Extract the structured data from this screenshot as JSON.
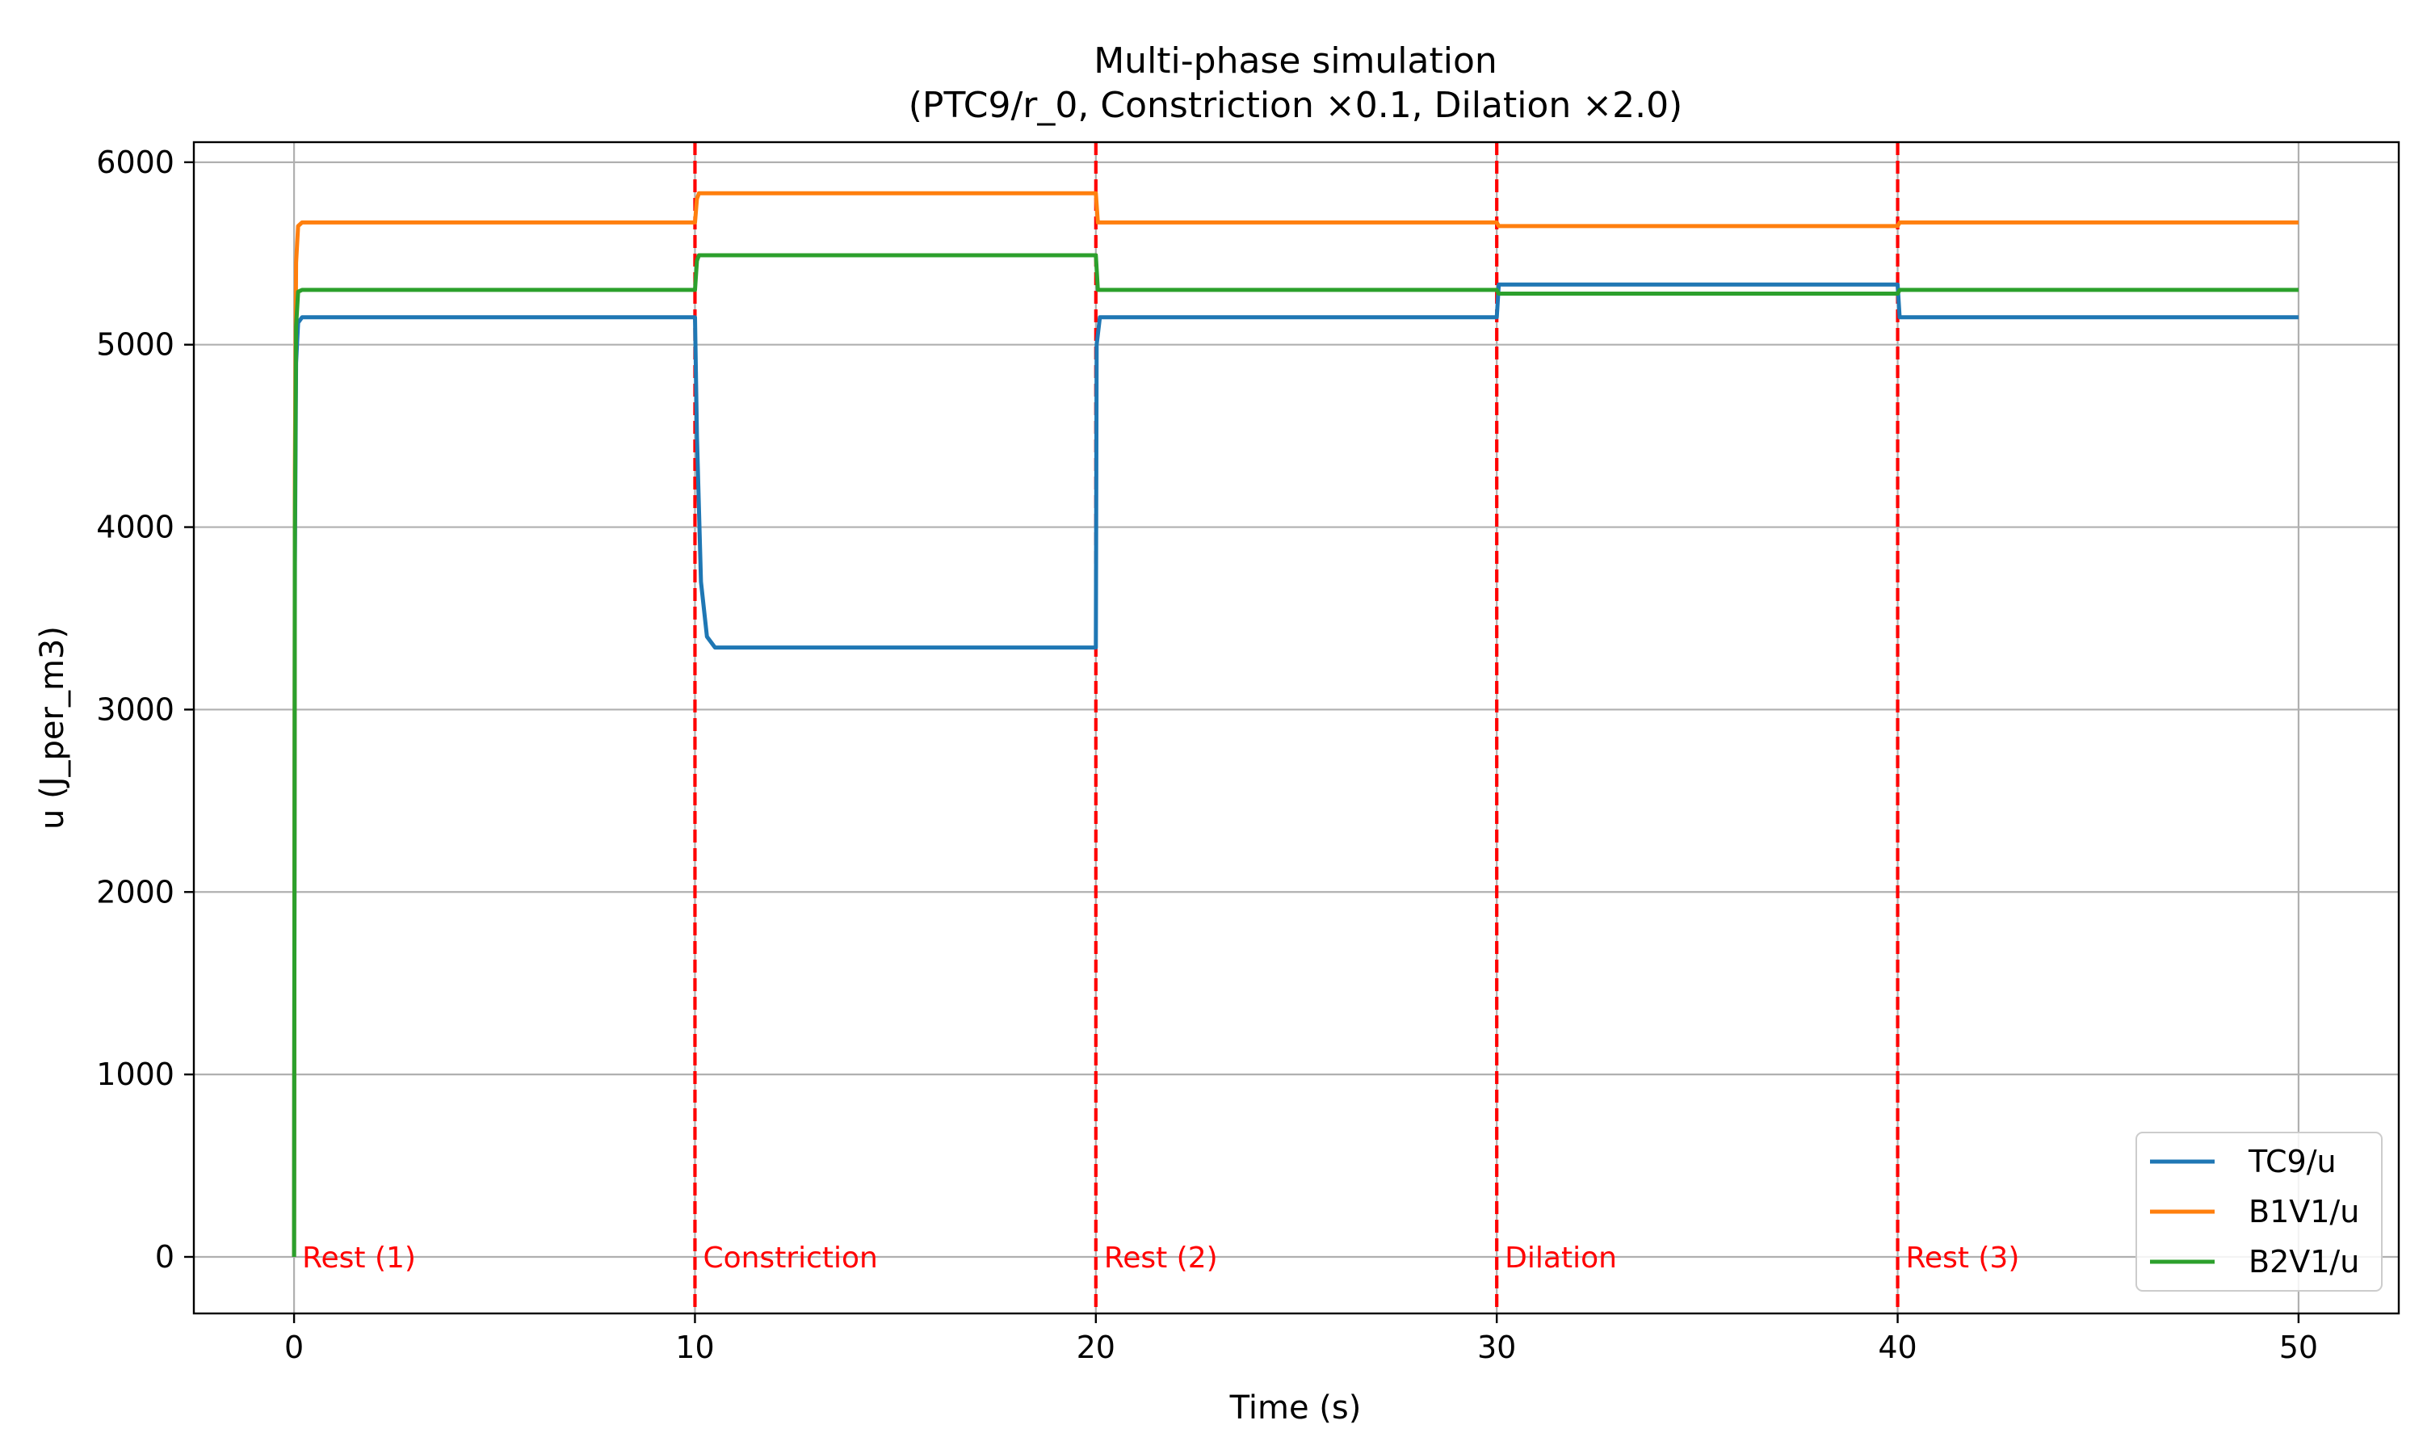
{
  "chart_data": {
    "type": "line",
    "title": "Multi-phase simulation",
    "subtitle": "(PTC9/r_0, Constriction ×0.1, Dilation ×2.0)",
    "xlabel": "Time (s)",
    "ylabel": "u (J_per_m3)",
    "xlim": [
      -2.5,
      52.5
    ],
    "ylim": [
      -310,
      6110
    ],
    "xticks": [
      0,
      10,
      20,
      30,
      40,
      50
    ],
    "xtick_labels": [
      "0",
      "10",
      "20",
      "30",
      "40",
      "50"
    ],
    "yticks": [
      0,
      1000,
      2000,
      3000,
      4000,
      5000,
      6000
    ],
    "ytick_labels": [
      "0",
      "1000",
      "2000",
      "3000",
      "4000",
      "5000",
      "6000"
    ],
    "grid": true,
    "legend_position": "lower-right",
    "phases": [
      {
        "start": 0,
        "label": "Rest (1)"
      },
      {
        "start": 10,
        "label": "Constriction"
      },
      {
        "start": 20,
        "label": "Rest (2)"
      },
      {
        "start": 30,
        "label": "Dilation"
      },
      {
        "start": 40,
        "label": "Rest (3)"
      }
    ],
    "phase_boundaries": [
      10,
      20,
      30,
      40
    ],
    "phase_color": "#ff0000",
    "series": [
      {
        "name": "TC9/u",
        "color": "#1f77b4",
        "x": [
          0,
          0.02,
          0.05,
          0.1,
          0.2,
          0.4,
          10,
          10.05,
          10.15,
          10.3,
          10.5,
          20,
          20.02,
          20.1,
          30,
          30.05,
          40,
          40.05,
          50
        ],
        "y": [
          0,
          3800,
          4900,
          5120,
          5150,
          5150,
          5150,
          4500,
          3700,
          3400,
          3340,
          3340,
          5000,
          5150,
          5150,
          5330,
          5330,
          5150,
          5150
        ]
      },
      {
        "name": "B1V1/u",
        "color": "#ff7f0e",
        "x": [
          0,
          0.02,
          0.05,
          0.1,
          0.2,
          10,
          10.05,
          10.1,
          20,
          20.05,
          30,
          30.05,
          40,
          40.05,
          50
        ],
        "y": [
          0,
          4300,
          5450,
          5650,
          5670,
          5670,
          5800,
          5830,
          5830,
          5670,
          5670,
          5650,
          5650,
          5670,
          5670
        ]
      },
      {
        "name": "B2V1/u",
        "color": "#2ca02c",
        "x": [
          0,
          0.02,
          0.05,
          0.1,
          0.2,
          10,
          10.05,
          10.1,
          20,
          20.05,
          30,
          30.05,
          40,
          40.05,
          50
        ],
        "y": [
          0,
          4000,
          5100,
          5290,
          5300,
          5300,
          5460,
          5490,
          5490,
          5300,
          5300,
          5280,
          5280,
          5300,
          5300
        ]
      }
    ]
  }
}
